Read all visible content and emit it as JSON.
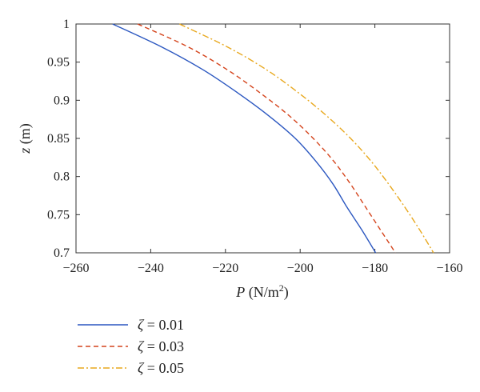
{
  "chart_data": {
    "type": "line",
    "title": "",
    "xlabel_var": "P",
    "xlabel_unit": " (N/m",
    "xlabel_sup": "2",
    "xlabel_close": ")",
    "ylabel_var": "z",
    "ylabel_unit": " (m)",
    "xlim": [
      -260,
      -160
    ],
    "ylim": [
      0.7,
      1.0
    ],
    "xticks": [
      -260,
      -240,
      -220,
      -200,
      -180,
      -160
    ],
    "yticks": [
      0.7,
      0.75,
      0.8,
      0.85,
      0.9,
      0.95,
      1.0
    ],
    "xtick_labels": [
      "−260",
      "−240",
      "−220",
      "−200",
      "−180",
      "−160"
    ],
    "ytick_labels": [
      "0.7",
      "0.75",
      "0.8",
      "0.85",
      "0.9",
      "0.95",
      "1"
    ],
    "grid": false,
    "legend_position": "below-left",
    "series": [
      {
        "name": "ζ = 0.01",
        "legend_var": "ζ",
        "legend_rest": " = 0.01",
        "color": "#2b57c0",
        "dash": "solid",
        "points": [
          {
            "x": -250.2,
            "z": 1.0
          },
          {
            "x": -237.1,
            "z": 0.97
          },
          {
            "x": -226.0,
            "z": 0.94
          },
          {
            "x": -216.8,
            "z": 0.91
          },
          {
            "x": -208.5,
            "z": 0.88
          },
          {
            "x": -201.3,
            "z": 0.85
          },
          {
            "x": -195.8,
            "z": 0.82
          },
          {
            "x": -191.2,
            "z": 0.79
          },
          {
            "x": -187.5,
            "z": 0.76
          },
          {
            "x": -183.5,
            "z": 0.73
          },
          {
            "x": -179.8,
            "z": 0.7
          }
        ]
      },
      {
        "name": "ζ = 0.03",
        "legend_var": "ζ",
        "legend_rest": " = 0.03",
        "color": "#d4431b",
        "dash": "dashed",
        "points": [
          {
            "x": -243.5,
            "z": 1.0
          },
          {
            "x": -230.0,
            "z": 0.97
          },
          {
            "x": -219.5,
            "z": 0.94
          },
          {
            "x": -210.8,
            "z": 0.91
          },
          {
            "x": -203.0,
            "z": 0.88
          },
          {
            "x": -196.5,
            "z": 0.85
          },
          {
            "x": -191.0,
            "z": 0.82
          },
          {
            "x": -186.5,
            "z": 0.79
          },
          {
            "x": -182.5,
            "z": 0.76
          },
          {
            "x": -178.5,
            "z": 0.73
          },
          {
            "x": -174.5,
            "z": 0.7
          }
        ]
      },
      {
        "name": "ζ = 0.05",
        "legend_var": "ζ",
        "legend_rest": " = 0.05",
        "color": "#e8a81e",
        "dash": "dashdot",
        "points": [
          {
            "x": -232.3,
            "z": 1.0
          },
          {
            "x": -219.5,
            "z": 0.97
          },
          {
            "x": -209.0,
            "z": 0.94
          },
          {
            "x": -200.5,
            "z": 0.91
          },
          {
            "x": -193.0,
            "z": 0.88
          },
          {
            "x": -186.5,
            "z": 0.85
          },
          {
            "x": -181.0,
            "z": 0.82
          },
          {
            "x": -176.3,
            "z": 0.79
          },
          {
            "x": -172.0,
            "z": 0.76
          },
          {
            "x": -168.0,
            "z": 0.73
          },
          {
            "x": -164.3,
            "z": 0.7
          }
        ]
      }
    ]
  }
}
